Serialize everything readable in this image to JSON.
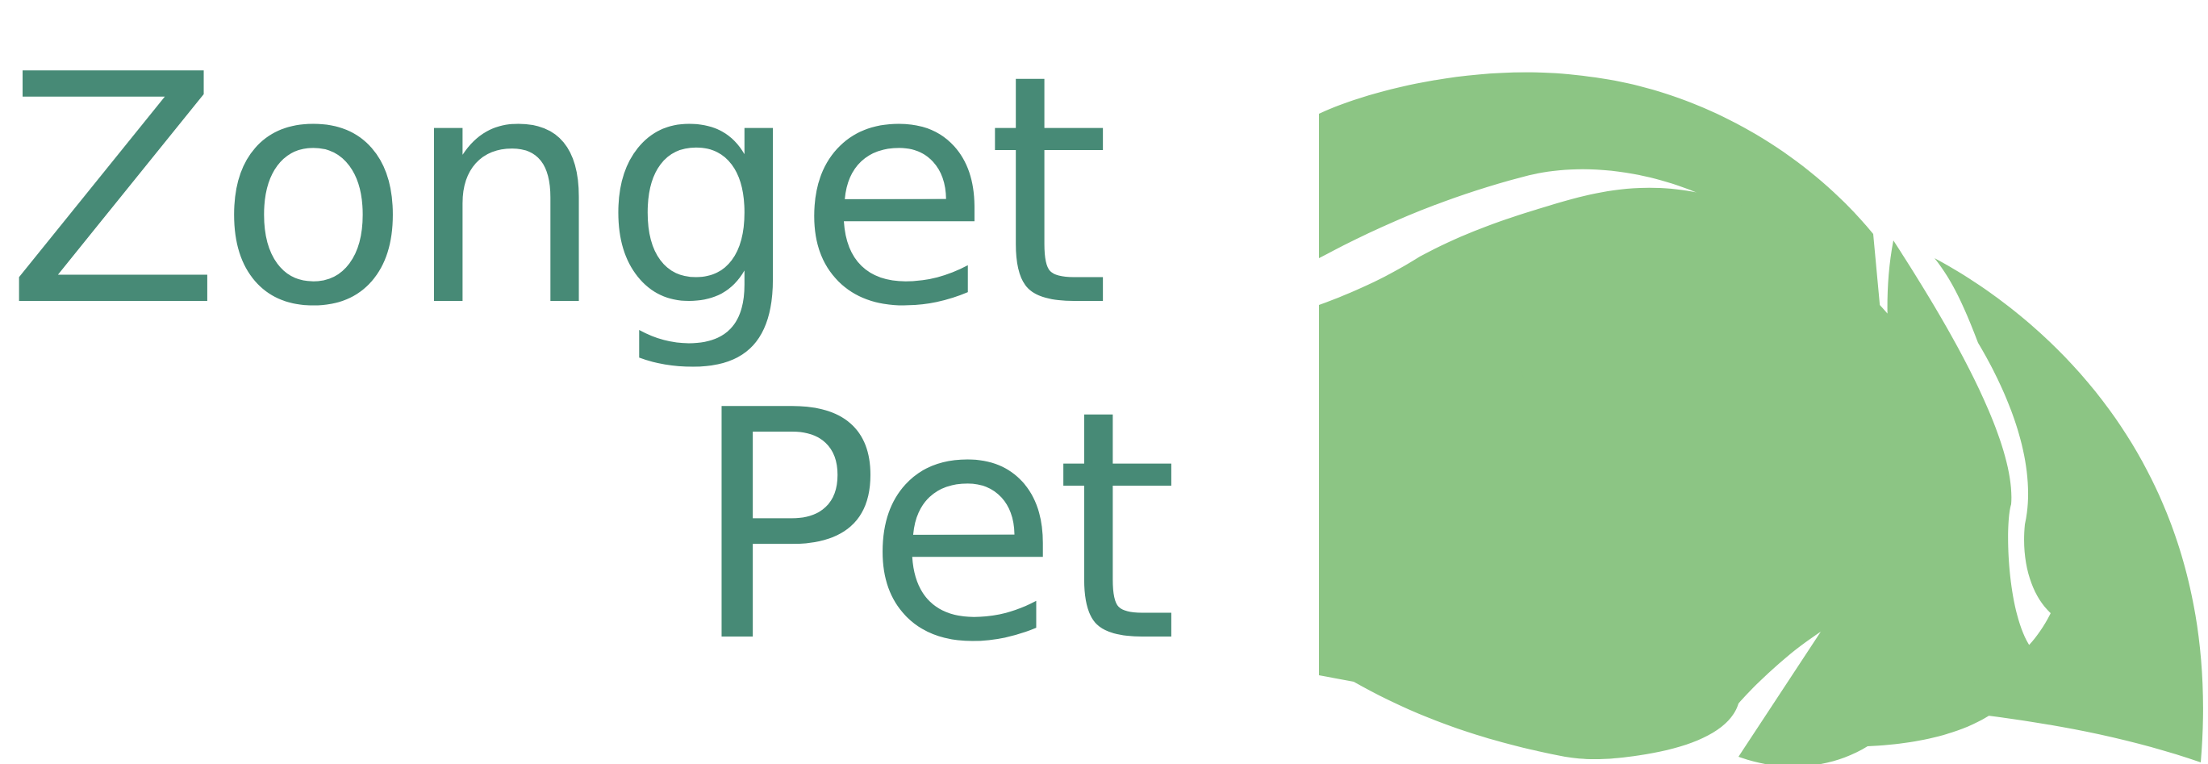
{
  "logo": {
    "line1": "Zonget",
    "line2": "Pet"
  },
  "colors": {
    "text": "#478a76",
    "mark": "#8cc584",
    "background": "#ffffff"
  },
  "mark": {
    "icon": "pet-creature-mark-icon"
  }
}
